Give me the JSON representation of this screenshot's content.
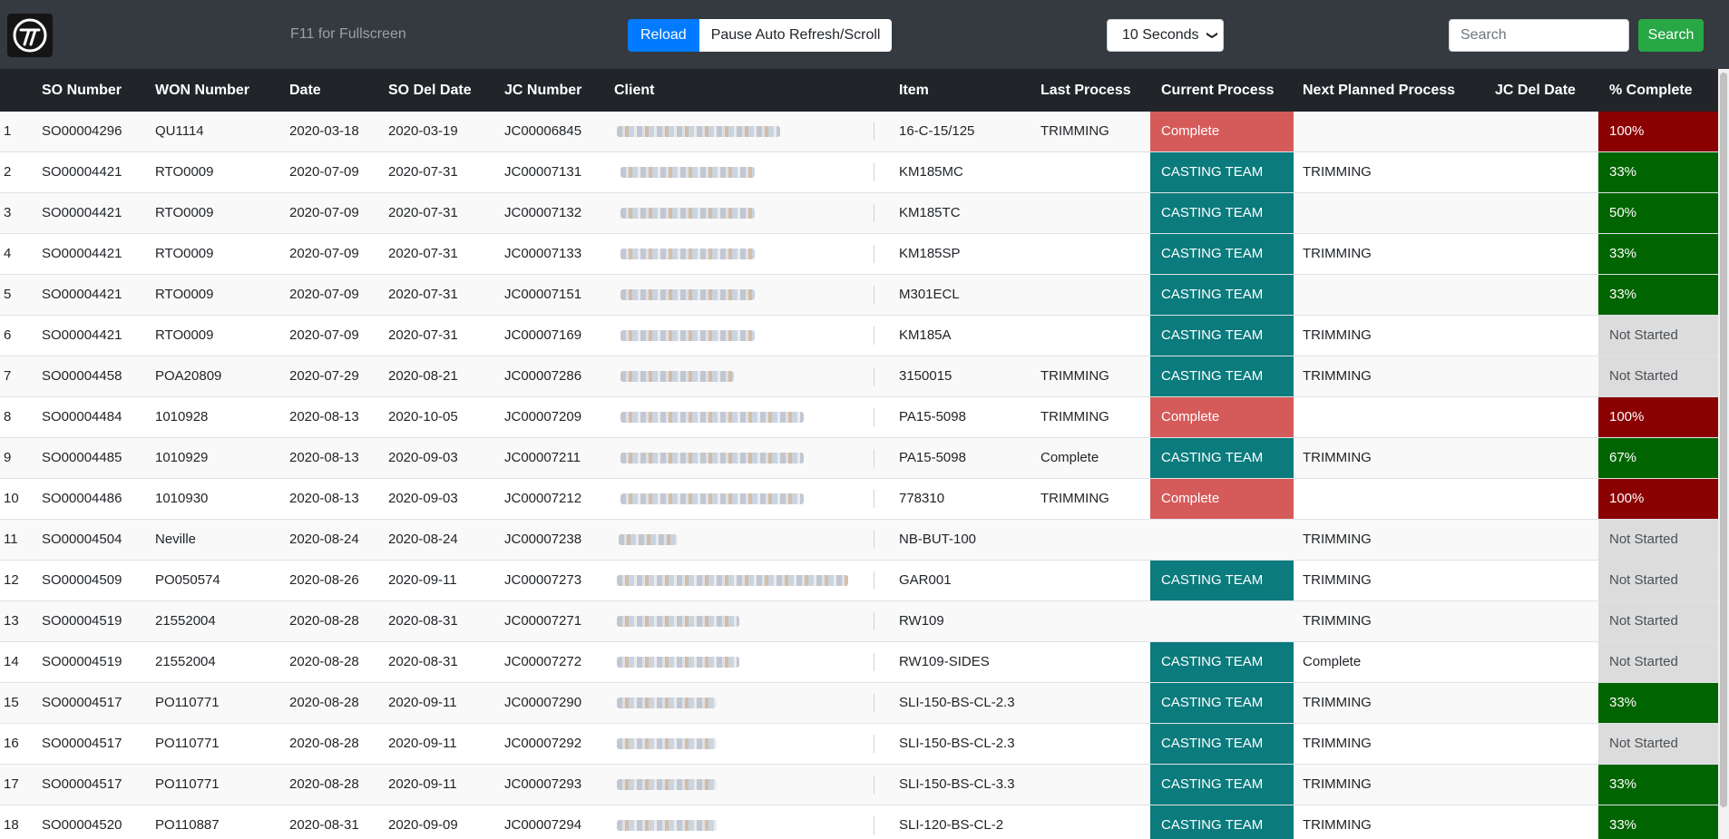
{
  "toolbar": {
    "fullscreen_hint": "F11 for Fullscreen",
    "reload_label": "Reload",
    "pause_label": "Pause Auto Refresh/Scroll",
    "interval_value": "10 Seconds",
    "search_placeholder": "Search",
    "search_button": "Search"
  },
  "colors": {
    "navbar": "#343a40",
    "header": "#212529",
    "reload": "#007bff",
    "search": "#28a745",
    "casting": "#0b7b7d",
    "complete": "#d55a5a",
    "pct_done": "#8b0000",
    "pct_partial": "#006400",
    "pct_not_started": "#dcdcdc"
  },
  "columns": [
    "",
    "SO Number",
    "WON Number",
    "Date",
    "SO Del Date",
    "JC Number",
    "Client",
    "Item",
    "Last Process",
    "Current Process",
    "Next Planned Process",
    "JC Del Date",
    "% Complete"
  ],
  "rows": [
    {
      "n": "1",
      "so": "SO00004296",
      "won": "QU1114",
      "date": "2020-03-18",
      "sodel": "2020-03-19",
      "jc": "JC00006845",
      "item": "16-C-15/125",
      "last": "TRIMMING",
      "current": "Complete",
      "next": "",
      "jcdel": "",
      "pct": "100%"
    },
    {
      "n": "2",
      "so": "SO00004421",
      "won": "RTO0009",
      "date": "2020-07-09",
      "sodel": "2020-07-31",
      "jc": "JC00007131",
      "item": "KM185MC",
      "last": "",
      "current": "CASTING TEAM",
      "next": "TRIMMING",
      "jcdel": "",
      "pct": "33%"
    },
    {
      "n": "3",
      "so": "SO00004421",
      "won": "RTO0009",
      "date": "2020-07-09",
      "sodel": "2020-07-31",
      "jc": "JC00007132",
      "item": "KM185TC",
      "last": "",
      "current": "CASTING TEAM",
      "next": "",
      "jcdel": "",
      "pct": "50%"
    },
    {
      "n": "4",
      "so": "SO00004421",
      "won": "RTO0009",
      "date": "2020-07-09",
      "sodel": "2020-07-31",
      "jc": "JC00007133",
      "item": "KM185SP",
      "last": "",
      "current": "CASTING TEAM",
      "next": "TRIMMING",
      "jcdel": "",
      "pct": "33%"
    },
    {
      "n": "5",
      "so": "SO00004421",
      "won": "RTO0009",
      "date": "2020-07-09",
      "sodel": "2020-07-31",
      "jc": "JC00007151",
      "item": "M301ECL",
      "last": "",
      "current": "CASTING TEAM",
      "next": "",
      "jcdel": "",
      "pct": "33%"
    },
    {
      "n": "6",
      "so": "SO00004421",
      "won": "RTO0009",
      "date": "2020-07-09",
      "sodel": "2020-07-31",
      "jc": "JC00007169",
      "item": "KM185A",
      "last": "",
      "current": "CASTING TEAM",
      "next": "TRIMMING",
      "jcdel": "",
      "pct": "Not Started"
    },
    {
      "n": "7",
      "so": "SO00004458",
      "won": "POA20809",
      "date": "2020-07-29",
      "sodel": "2020-08-21",
      "jc": "JC00007286",
      "item": "3150015",
      "last": "TRIMMING",
      "current": "CASTING TEAM",
      "next": "TRIMMING",
      "jcdel": "",
      "pct": "Not Started"
    },
    {
      "n": "8",
      "so": "SO00004484",
      "won": "1010928",
      "date": "2020-08-13",
      "sodel": "2020-10-05",
      "jc": "JC00007209",
      "item": "PA15-5098",
      "last": "TRIMMING",
      "current": "Complete",
      "next": "",
      "jcdel": "",
      "pct": "100%"
    },
    {
      "n": "9",
      "so": "SO00004485",
      "won": "1010929",
      "date": "2020-08-13",
      "sodel": "2020-09-03",
      "jc": "JC00007211",
      "item": "PA15-5098",
      "last": "Complete",
      "current": "CASTING TEAM",
      "next": "TRIMMING",
      "jcdel": "",
      "pct": "67%"
    },
    {
      "n": "10",
      "so": "SO00004486",
      "won": "1010930",
      "date": "2020-08-13",
      "sodel": "2020-09-03",
      "jc": "JC00007212",
      "item": "778310",
      "last": "TRIMMING",
      "current": "Complete",
      "next": "",
      "jcdel": "",
      "pct": "100%"
    },
    {
      "n": "11",
      "so": "SO00004504",
      "won": "Neville",
      "date": "2020-08-24",
      "sodel": "2020-08-24",
      "jc": "JC00007238",
      "item": "NB-BUT-100",
      "last": "",
      "current": "",
      "next": "TRIMMING",
      "jcdel": "",
      "pct": "Not Started"
    },
    {
      "n": "12",
      "so": "SO00004509",
      "won": "PO050574",
      "date": "2020-08-26",
      "sodel": "2020-09-11",
      "jc": "JC00007273",
      "item": "GAR001",
      "last": "",
      "current": "CASTING TEAM",
      "next": "TRIMMING",
      "jcdel": "",
      "pct": "Not Started"
    },
    {
      "n": "13",
      "so": "SO00004519",
      "won": "21552004",
      "date": "2020-08-28",
      "sodel": "2020-08-31",
      "jc": "JC00007271",
      "item": "RW109",
      "last": "",
      "current": "",
      "next": "TRIMMING",
      "jcdel": "",
      "pct": "Not Started"
    },
    {
      "n": "14",
      "so": "SO00004519",
      "won": "21552004",
      "date": "2020-08-28",
      "sodel": "2020-08-31",
      "jc": "JC00007272",
      "item": "RW109-SIDES",
      "last": "",
      "current": "CASTING TEAM",
      "next": "Complete",
      "jcdel": "",
      "pct": "Not Started"
    },
    {
      "n": "15",
      "so": "SO00004517",
      "won": "PO110771",
      "date": "2020-08-28",
      "sodel": "2020-09-11",
      "jc": "JC00007290",
      "item": "SLI-150-BS-CL-2.3",
      "last": "",
      "current": "CASTING TEAM",
      "next": "TRIMMING",
      "jcdel": "",
      "pct": "33%"
    },
    {
      "n": "16",
      "so": "SO00004517",
      "won": "PO110771",
      "date": "2020-08-28",
      "sodel": "2020-09-11",
      "jc": "JC00007292",
      "item": "SLI-150-BS-CL-2.3",
      "last": "",
      "current": "CASTING TEAM",
      "next": "TRIMMING",
      "jcdel": "",
      "pct": "Not Started"
    },
    {
      "n": "17",
      "so": "SO00004517",
      "won": "PO110771",
      "date": "2020-08-28",
      "sodel": "2020-09-11",
      "jc": "JC00007293",
      "item": "SLI-150-BS-CL-3.3",
      "last": "",
      "current": "CASTING TEAM",
      "next": "TRIMMING",
      "jcdel": "",
      "pct": "33%"
    },
    {
      "n": "18",
      "so": "SO00004520",
      "won": "PO110887",
      "date": "2020-08-31",
      "sodel": "2020-09-09",
      "jc": "JC00007294",
      "item": "SLI-120-BS-CL-2",
      "last": "",
      "current": "CASTING TEAM",
      "next": "TRIMMING",
      "jcdel": "",
      "pct": "33%"
    }
  ]
}
